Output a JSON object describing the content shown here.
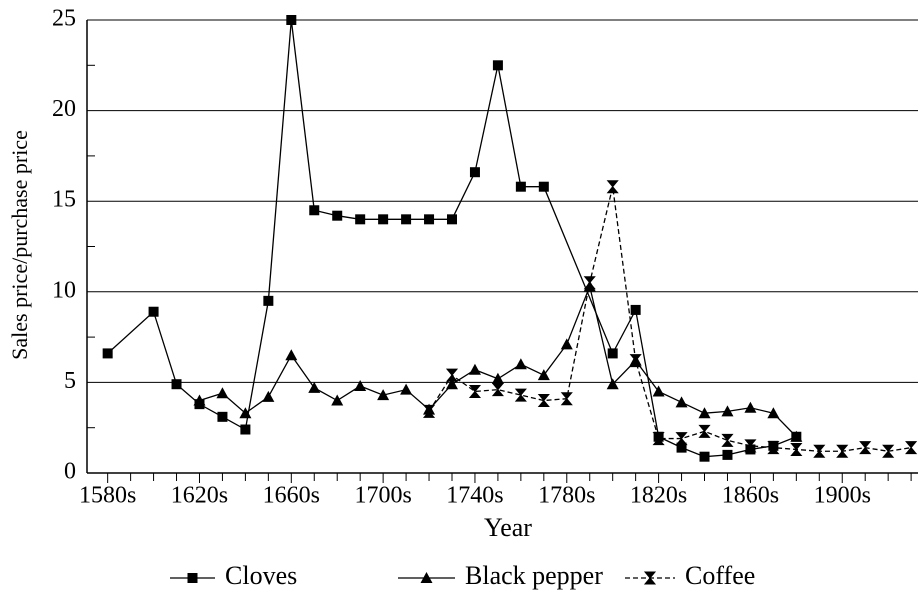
{
  "chart_data": {
    "type": "line",
    "ylabel": "Sales price/purchase price",
    "xlabel": "Year",
    "xlim": [
      1571,
      1933
    ],
    "ylim": [
      0,
      25
    ],
    "yticks": [
      0,
      5,
      10,
      15,
      20,
      25
    ],
    "yminorticks": [
      2.5,
      7.5,
      12.5,
      17.5,
      22.5
    ],
    "xticks": [
      {
        "value": 1580,
        "label": "1580s"
      },
      {
        "value": 1620,
        "label": "1620s"
      },
      {
        "value": 1660,
        "label": "1660s"
      },
      {
        "value": 1700,
        "label": "1700s"
      },
      {
        "value": 1740,
        "label": "1740s"
      },
      {
        "value": 1780,
        "label": "1780s"
      },
      {
        "value": 1820,
        "label": "1820s"
      },
      {
        "value": 1860,
        "label": "1860s"
      },
      {
        "value": 1900,
        "label": "1900s"
      }
    ],
    "xminorticks": [
      1590,
      1600,
      1610,
      1630,
      1640,
      1650,
      1670,
      1680,
      1690,
      1710,
      1720,
      1730,
      1750,
      1760,
      1770,
      1790,
      1800,
      1810,
      1830,
      1840,
      1850,
      1870,
      1880,
      1890,
      1910,
      1920,
      1930
    ],
    "grid": true,
    "series": [
      {
        "name": "Cloves",
        "color": "#000000",
        "marker": "square",
        "dashed": false,
        "x": [
          1580,
          1600,
          1610,
          1620,
          1630,
          1640,
          1650,
          1660,
          1670,
          1680,
          1690,
          1700,
          1710,
          1720,
          1730,
          1740,
          1750,
          1760,
          1770,
          1800,
          1810,
          1820,
          1830,
          1840,
          1850,
          1860,
          1870,
          1880
        ],
        "values": [
          6.6,
          8.9,
          4.9,
          3.8,
          3.1,
          2.4,
          9.5,
          25,
          14.5,
          14.2,
          14.0,
          14.0,
          14.0,
          14.0,
          14.0,
          16.6,
          22.5,
          15.8,
          15.8,
          6.6,
          9.0,
          2.0,
          1.4,
          0.9,
          1.0,
          1.3,
          1.5,
          2.0
        ]
      },
      {
        "name": "Black pepper",
        "color": "#000000",
        "marker": "triangle",
        "dashed": false,
        "x": [
          1620,
          1630,
          1640,
          1650,
          1660,
          1670,
          1680,
          1690,
          1700,
          1710,
          1720,
          1730,
          1740,
          1750,
          1760,
          1770,
          1780,
          1790,
          1800,
          1810,
          1820,
          1830,
          1840,
          1850,
          1860,
          1870,
          1880
        ],
        "values": [
          4.0,
          4.4,
          3.3,
          4.2,
          6.5,
          4.7,
          4.0,
          4.8,
          4.3,
          4.6,
          3.5,
          4.9,
          5.7,
          5.2,
          6.0,
          5.4,
          7.1,
          10.3,
          4.9,
          6.2,
          4.5,
          3.9,
          3.3,
          3.4,
          3.6,
          3.3,
          2.0
        ]
      },
      {
        "name": "Coffee",
        "color": "#000000",
        "marker": "hourglass",
        "dashed": true,
        "x": [
          1720,
          1730,
          1740,
          1750,
          1760,
          1770,
          1780,
          1790,
          1800,
          1810,
          1820,
          1830,
          1840,
          1850,
          1860,
          1870,
          1880,
          1890,
          1900,
          1910,
          1920,
          1930
        ],
        "values": [
          3.4,
          5.4,
          4.5,
          4.6,
          4.3,
          4.0,
          4.1,
          10.5,
          15.8,
          6.2,
          1.9,
          1.9,
          2.3,
          1.8,
          1.5,
          1.4,
          1.3,
          1.2,
          1.2,
          1.4,
          1.2,
          1.4
        ]
      }
    ]
  }
}
